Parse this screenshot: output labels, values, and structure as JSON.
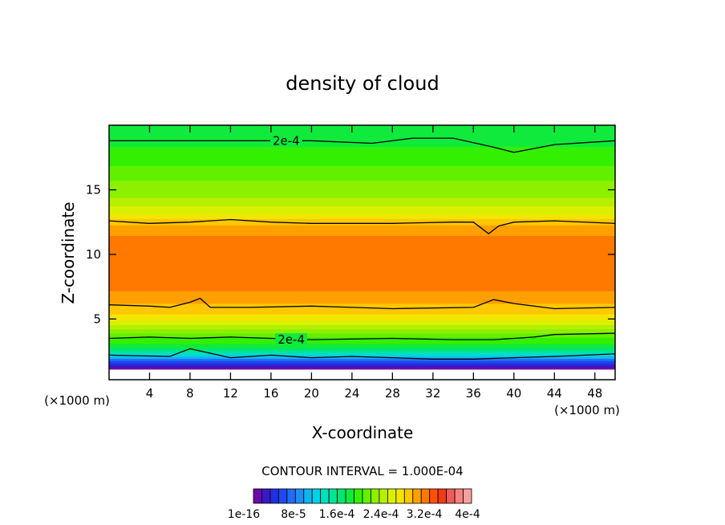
{
  "chart_data": {
    "type": "heatmap",
    "title": "density of cloud",
    "xlabel": "X-coordinate",
    "ylabel": "Z-coordinate",
    "x_unit_left": "(×1000 m)",
    "x_unit_right": "(×1000 m)",
    "xlim": [
      0,
      50
    ],
    "ylim": [
      0.3,
      20
    ],
    "x_ticks": [
      4,
      8,
      12,
      16,
      20,
      24,
      28,
      32,
      36,
      40,
      44,
      48
    ],
    "y_ticks": [
      5,
      10,
      15
    ],
    "contour_interval_text": "CONTOUR INTERVAL = 1.000E-04",
    "contour_labels": [
      {
        "text": "2e-4",
        "x": 17.5,
        "z": 18.8
      },
      {
        "text": "2e-4",
        "x": 18.0,
        "z": 3.4
      }
    ],
    "colorbar_ticklabels": [
      "1e-16",
      "8e-5",
      "1.6e-4",
      "2.4e-4",
      "3.2e-4",
      "4e-4"
    ],
    "colorbar_colors": [
      "#6a0aa8",
      "#3a18c8",
      "#2030e0",
      "#2048f0",
      "#1f6cf5",
      "#1a90f5",
      "#10b4f0",
      "#00d2e6",
      "#00e0bf",
      "#00e596",
      "#00e66e",
      "#10ea3c",
      "#32f000",
      "#60f000",
      "#8cf000",
      "#b4f000",
      "#daf000",
      "#f2e600",
      "#ffc800",
      "#ffa000",
      "#ff7800",
      "#ff5000",
      "#f03a14",
      "#f05a5a",
      "#f88080",
      "#f8a0a0"
    ],
    "value_range": [
      0,
      0.0004
    ],
    "profile_z": [
      0.3,
      1.2,
      1.6,
      1.9,
      2.2,
      2.6,
      3.0,
      3.5,
      4.2,
      5.0,
      6.0,
      6.5,
      8.0,
      10.0,
      11.5,
      12.5,
      13.2,
      14.5,
      16.0,
      17.5,
      19.0,
      20.0
    ],
    "profile_value": [
      0.0,
      0.0,
      4e-05,
      8e-05,
      0.00012,
      0.00016,
      0.00019,
      0.0002,
      0.00024,
      0.00028,
      0.0003,
      0.00031,
      0.00033,
      0.000335,
      0.00032,
      0.0003,
      0.00027,
      0.00024,
      0.00022,
      0.0002,
      0.000185,
      0.00018
    ],
    "contours": [
      {
        "name": "upper 2e-4",
        "x": [
          0,
          10,
          20,
          26,
          30,
          34,
          38,
          40,
          44,
          50
        ],
        "z": [
          18.8,
          18.8,
          18.8,
          18.6,
          19.0,
          19.0,
          18.3,
          17.9,
          18.5,
          18.8
        ]
      },
      {
        "name": "upper 3e-4",
        "x": [
          0,
          4,
          8,
          12,
          16,
          20,
          28,
          34,
          36,
          37.5,
          38.5,
          40,
          44,
          50
        ],
        "z": [
          12.6,
          12.4,
          12.5,
          12.7,
          12.5,
          12.4,
          12.4,
          12.5,
          12.5,
          11.6,
          12.2,
          12.5,
          12.6,
          12.4
        ]
      },
      {
        "name": "lower 3e-4",
        "x": [
          0,
          4,
          6,
          8,
          9,
          10,
          14,
          20,
          24,
          28,
          36,
          38,
          40,
          44,
          50
        ],
        "z": [
          6.1,
          6.0,
          5.9,
          6.3,
          6.6,
          5.9,
          5.9,
          6.0,
          5.9,
          5.8,
          5.9,
          6.5,
          6.2,
          5.8,
          5.9
        ]
      },
      {
        "name": "lower 2e-4",
        "x": [
          0,
          4,
          8,
          12,
          16,
          20,
          28,
          34,
          38,
          42,
          44,
          50
        ],
        "z": [
          3.5,
          3.6,
          3.5,
          3.6,
          3.5,
          3.4,
          3.5,
          3.4,
          3.4,
          3.6,
          3.8,
          3.9
        ]
      },
      {
        "name": "lower 1e-4",
        "x": [
          0,
          6,
          8,
          12,
          16,
          20,
          24,
          28,
          32,
          36,
          40,
          44,
          50
        ],
        "z": [
          2.2,
          2.1,
          2.7,
          2.0,
          2.2,
          2.0,
          2.1,
          2.0,
          1.9,
          1.9,
          2.0,
          2.1,
          2.3
        ]
      }
    ]
  }
}
